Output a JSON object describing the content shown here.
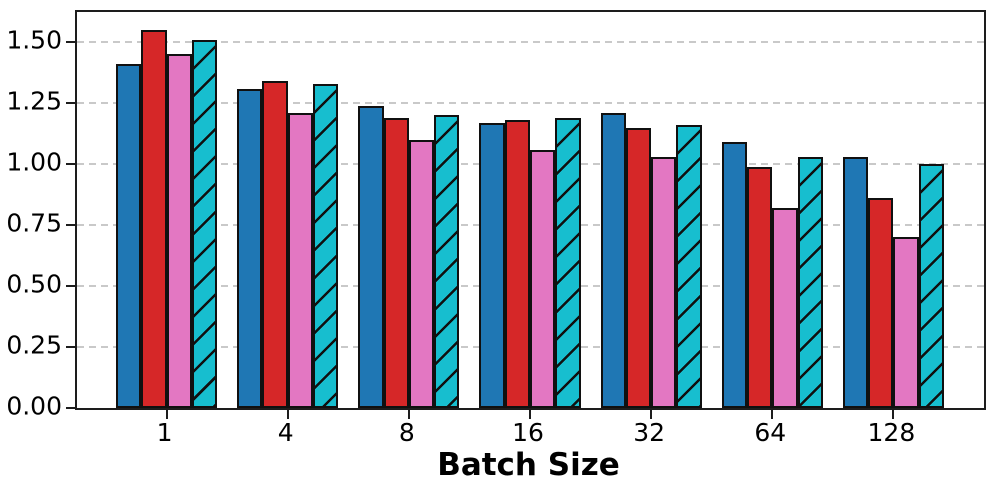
{
  "chart_data": {
    "type": "bar",
    "title": "",
    "xlabel": "Batch Size",
    "ylabel": "",
    "categories": [
      "1",
      "4",
      "8",
      "16",
      "32",
      "64",
      "128"
    ],
    "series": [
      {
        "name": "series-blue",
        "color": "#1f77b4",
        "hatch": null,
        "values": [
          1.41,
          1.31,
          1.24,
          1.17,
          1.21,
          1.09,
          1.03
        ]
      },
      {
        "name": "series-red",
        "color": "#d62728",
        "hatch": null,
        "values": [
          1.55,
          1.34,
          1.19,
          1.18,
          1.15,
          0.99,
          0.86
        ]
      },
      {
        "name": "series-pink",
        "color": "#e377c2",
        "hatch": null,
        "values": [
          1.45,
          1.21,
          1.1,
          1.06,
          1.03,
          0.82,
          0.7
        ]
      },
      {
        "name": "series-cyan-hatched",
        "color": "#17becf",
        "hatch": "/",
        "values": [
          1.51,
          1.33,
          1.2,
          1.19,
          1.16,
          1.03,
          1.0
        ]
      }
    ],
    "yticks": [
      "0.00",
      "0.25",
      "0.50",
      "0.75",
      "1.00",
      "1.25",
      "1.50"
    ],
    "ylim": [
      0,
      1.624
    ],
    "grid": "horizontal-dashed",
    "legend": "none",
    "colors": {
      "background": "#ffffff",
      "spine": "#1d1d1d",
      "gridline": "#c9c9c9",
      "bar_edge": "#101010",
      "text": "#000000"
    }
  }
}
